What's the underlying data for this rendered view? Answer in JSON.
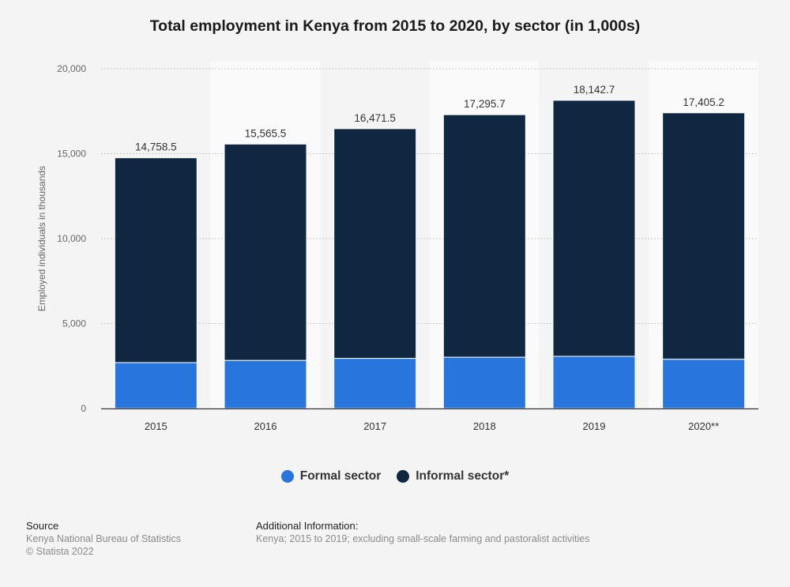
{
  "chart_data": {
    "type": "bar",
    "stacked": true,
    "title": "Total employment in Kenya from 2015 to 2020, by sector (in 1,000s)",
    "ylabel": "Employed individuals in thousands",
    "xlabel": "",
    "ylim": [
      0,
      20000
    ],
    "yticks": [
      0,
      5000,
      10000,
      15000,
      20000
    ],
    "ytick_labels": [
      "0",
      "5,000",
      "10,000",
      "15,000",
      "20,000"
    ],
    "grid": true,
    "legend_position": "bottom",
    "categories": [
      "2015",
      "2016",
      "2017",
      "2018",
      "2019",
      "2020**"
    ],
    "series": [
      {
        "name": "Formal sector",
        "color": "#2876dd",
        "values": [
          2700,
          2830,
          2950,
          3020,
          3070,
          2900
        ]
      },
      {
        "name": "Informal sector*",
        "color": "#0f2741",
        "values": [
          12058.5,
          12735.5,
          13521.5,
          14275.7,
          15072.7,
          14505.2
        ]
      }
    ],
    "totals": [
      14758.5,
      15565.5,
      16471.5,
      17295.7,
      18142.7,
      17405.2
    ],
    "total_labels": [
      "14,758.5",
      "15,565.5",
      "16,471.5",
      "17,295.7",
      "18,142.7",
      "17,405.2"
    ]
  },
  "footer": {
    "source_heading": "Source",
    "source_lines": [
      "Kenya National Bureau of Statistics",
      "© Statista 2022"
    ],
    "info_heading": "Additional Information:",
    "info_lines": [
      "Kenya; 2015 to 2019; excluding small-scale farming and pastoralist activities"
    ]
  }
}
